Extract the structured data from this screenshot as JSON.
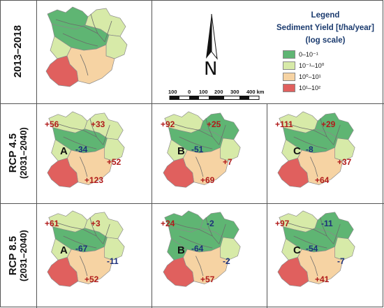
{
  "legend": {
    "title": "Legend",
    "subtitle": "Sediment Yield [t/ha/year]",
    "subtitle2": "(log scale)",
    "classes": [
      {
        "label": "0–10⁻¹",
        "color": "#5fb573"
      },
      {
        "label": "10⁻¹–10⁰",
        "color": "#d7eaa8"
      },
      {
        "label": "10⁰–10¹",
        "color": "#f6d3a3"
      },
      {
        "label": "10¹–10²",
        "color": "#e0605e"
      }
    ]
  },
  "scale_bar": {
    "ticks": [
      "100",
      "0",
      "100",
      "200",
      "300",
      "400 km"
    ]
  },
  "north_arrow": {
    "label": "N"
  },
  "rows": [
    {
      "label": "2013–2018",
      "sublabel": ""
    },
    {
      "label": "RCP 4.5",
      "sublabel": "(2031–2040)"
    },
    {
      "label": "RCP 8.5",
      "sublabel": "(2031–2040)"
    }
  ],
  "panels": [
    {
      "id": "baseline",
      "letter": "",
      "values": {
        "nw": "",
        "ne": "",
        "center": "",
        "east": "",
        "south": ""
      }
    },
    {
      "id": "rcp45-A",
      "letter": "A",
      "values": {
        "nw": "+56",
        "ne": "+33",
        "center": "-34",
        "east": "+52",
        "south": "+123"
      }
    },
    {
      "id": "rcp45-B",
      "letter": "B",
      "values": {
        "nw": "+92",
        "ne": "+25",
        "center": "-51",
        "east": "+7",
        "south": "+69"
      }
    },
    {
      "id": "rcp45-C",
      "letter": "C",
      "values": {
        "nw": "+111",
        "ne": "+29",
        "center": "-8",
        "east": "+37",
        "south": "+64"
      }
    },
    {
      "id": "rcp85-A",
      "letter": "A",
      "values": {
        "nw": "+61",
        "ne": "+3",
        "center": "-67",
        "east": "-11",
        "south": "+52"
      }
    },
    {
      "id": "rcp85-B",
      "letter": "B",
      "values": {
        "nw": "+24",
        "ne": "-2",
        "center": "-64",
        "east": "-2",
        "south": "+57"
      }
    },
    {
      "id": "rcp85-C",
      "letter": "C",
      "values": {
        "nw": "+97",
        "ne": "-11",
        "center": "-54",
        "east": "-7",
        "south": "+41"
      }
    }
  ]
}
